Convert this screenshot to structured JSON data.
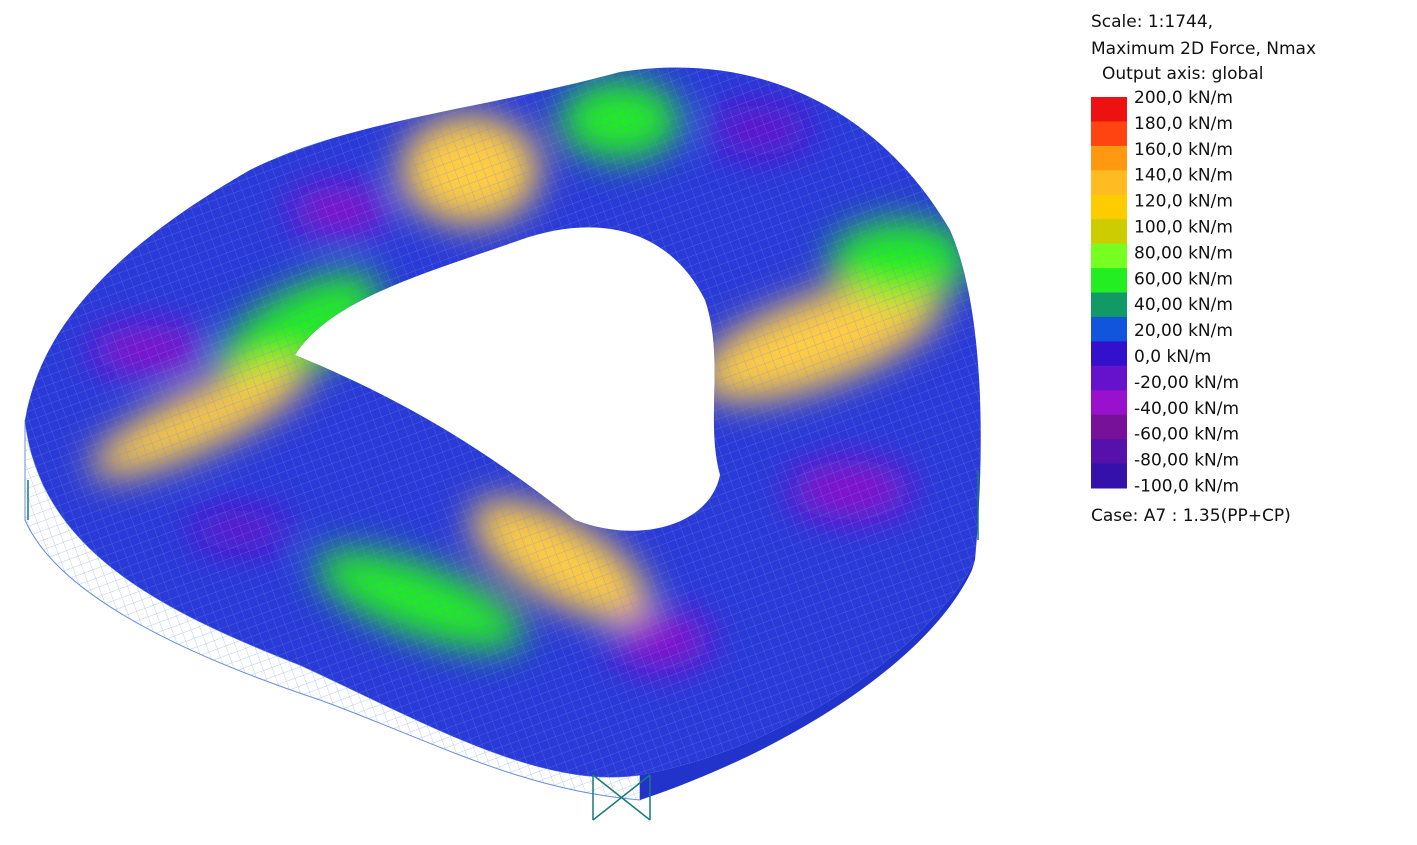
{
  "header": {
    "scale": "Scale: 1:1744,",
    "result": "Maximum 2D Force, Nmax",
    "axis": "Output axis: global"
  },
  "legend": {
    "items": [
      {
        "label": "200,0 kN/m",
        "color": "#ee1111"
      },
      {
        "label": "180,0 kN/m",
        "color": "#ff4411"
      },
      {
        "label": "160,0 kN/m",
        "color": "#ff9911"
      },
      {
        "label": "140,0 kN/m",
        "color": "#ffbb22"
      },
      {
        "label": "120,0 kN/m",
        "color": "#ffcc00"
      },
      {
        "label": "100,0 kN/m",
        "color": "#cccc00"
      },
      {
        "label": "80,00 kN/m",
        "color": "#77ff22"
      },
      {
        "label": "60,00 kN/m",
        "color": "#22ee22"
      },
      {
        "label": "40,00 kN/m",
        "color": "#119966"
      },
      {
        "label": "20,00 kN/m",
        "color": "#1155dd"
      },
      {
        "label": "0,0 kN/m",
        "color": "#3311cc"
      },
      {
        "label": "-20,00 kN/m",
        "color": "#6611cc"
      },
      {
        "label": "-40,00 kN/m",
        "color": "#9911cc"
      },
      {
        "label": "-60,00 kN/m",
        "color": "#771199"
      },
      {
        "label": "-80,00 kN/m",
        "color": "#5511aa"
      },
      {
        "label": "-100,0 kN/m",
        "color": "#3311aa"
      }
    ]
  },
  "footer": {
    "case": "Case: A7 : 1.35(PP+CP)"
  }
}
